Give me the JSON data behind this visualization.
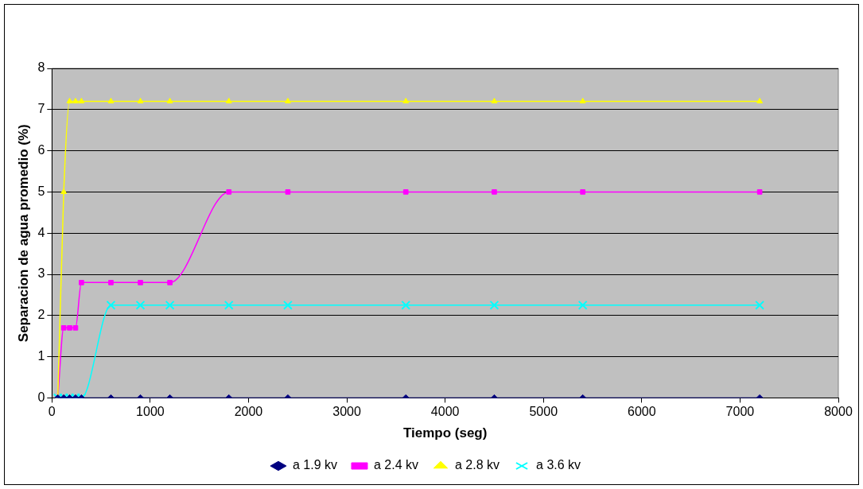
{
  "chart_data": {
    "type": "line",
    "xlabel": "Tiempo (seg)",
    "ylabel": "Separacion de agua promedio (%)",
    "x": [
      60,
      120,
      180,
      240,
      300,
      600,
      900,
      1200,
      1800,
      2400,
      3600,
      4500,
      5400,
      7200
    ],
    "series": [
      {
        "name": "a 1.9 kv",
        "color": "#000080",
        "marker": "diamond",
        "values": [
          0,
          0,
          0,
          0,
          0,
          0,
          0,
          0,
          0,
          0,
          0,
          0,
          0,
          0
        ]
      },
      {
        "name": "a 2.4 kv",
        "color": "#ff00ff",
        "marker": "square",
        "values": [
          0,
          1.7,
          1.7,
          1.7,
          2.8,
          2.8,
          2.8,
          2.8,
          5,
          5,
          5,
          5,
          5,
          5
        ]
      },
      {
        "name": "a 2.8 kv",
        "color": "#ffff00",
        "marker": "triangle",
        "values": [
          0,
          5,
          7.2,
          7.2,
          7.2,
          7.2,
          7.2,
          7.2,
          7.2,
          7.2,
          7.2,
          7.2,
          7.2,
          7.2
        ]
      },
      {
        "name": "a 3.6 kv",
        "color": "#00ffff",
        "marker": "cross",
        "values": [
          0,
          0,
          0,
          0,
          0,
          2.25,
          2.25,
          2.25,
          2.25,
          2.25,
          2.25,
          2.25,
          2.25,
          2.25
        ]
      }
    ],
    "xlim": [
      0,
      8000
    ],
    "xticks": [
      0,
      1000,
      2000,
      3000,
      4000,
      5000,
      6000,
      7000,
      8000
    ],
    "ylim": [
      0,
      8
    ],
    "yticks": [
      0,
      1,
      2,
      3,
      4,
      5,
      6,
      7,
      8
    ],
    "grid": "y",
    "legend": "bottom"
  }
}
